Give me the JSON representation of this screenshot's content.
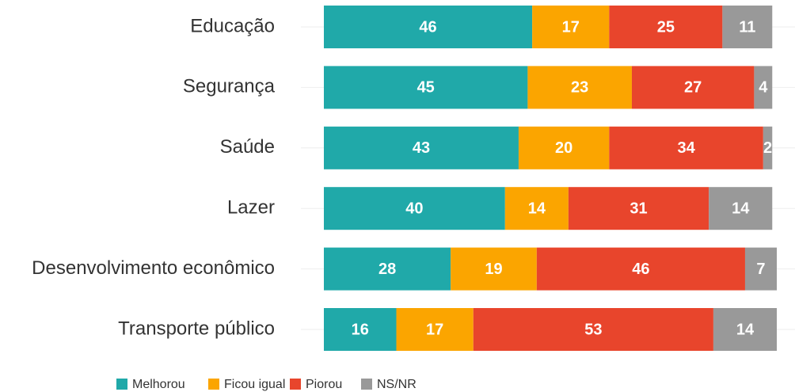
{
  "chart_data": {
    "type": "stacked-barh",
    "categories": [
      "Educação",
      "Segurança",
      "Saúde",
      "Lazer",
      "Desenvolvimento econômico",
      "Transporte público"
    ],
    "series": [
      {
        "name": "Melhorou",
        "color": "#20a9a9",
        "values": [
          46,
          45,
          43,
          40,
          28,
          16
        ]
      },
      {
        "name": "Ficou igual",
        "color": "#fba500",
        "values": [
          17,
          23,
          20,
          14,
          19,
          17
        ]
      },
      {
        "name": "Piorou",
        "color": "#e8452c",
        "values": [
          25,
          27,
          34,
          31,
          46,
          53
        ]
      },
      {
        "name": "NS/NR",
        "color": "#999999",
        "values": [
          11,
          4,
          2,
          14,
          7,
          14
        ]
      }
    ],
    "xlim": [
      0,
      100
    ],
    "legend": "bottom"
  }
}
